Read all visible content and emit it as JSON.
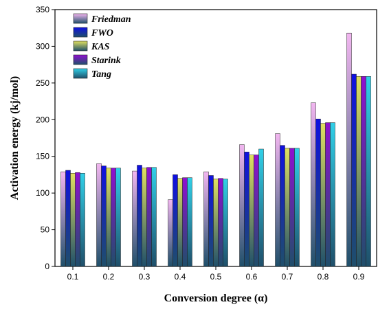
{
  "chart_data": {
    "type": "bar",
    "title": "",
    "xlabel": "Conversion degree (α)",
    "ylabel": "Activation energy (kj/mol)",
    "ylim": [
      0,
      350
    ],
    "yticks": [
      0,
      50,
      100,
      150,
      200,
      250,
      300,
      350
    ],
    "grid": false,
    "legend_position": "top-left",
    "categories": [
      "0.1",
      "0.2",
      "0.3",
      "0.4",
      "0.5",
      "0.6",
      "0.7",
      "0.8",
      "0.9"
    ],
    "series": [
      {
        "name": "Friedman",
        "color": "#f2b6f0",
        "values": [
          129,
          140,
          130,
          91,
          129,
          166,
          181,
          223,
          318
        ]
      },
      {
        "name": "FWO",
        "color": "#1010e0",
        "values": [
          131,
          137,
          138,
          125,
          124,
          156,
          165,
          201,
          262
        ]
      },
      {
        "name": "KAS",
        "color": "#e0e060",
        "values": [
          127,
          134,
          134,
          120,
          119,
          152,
          161,
          195,
          259
        ]
      },
      {
        "name": "Starink",
        "color": "#9010d0",
        "values": [
          128,
          134,
          135,
          121,
          120,
          152,
          161,
          196,
          259
        ]
      },
      {
        "name": "Tang",
        "color": "#30d0e8",
        "values": [
          127,
          134,
          135,
          121,
          119,
          160,
          161,
          196,
          259
        ]
      }
    ]
  }
}
